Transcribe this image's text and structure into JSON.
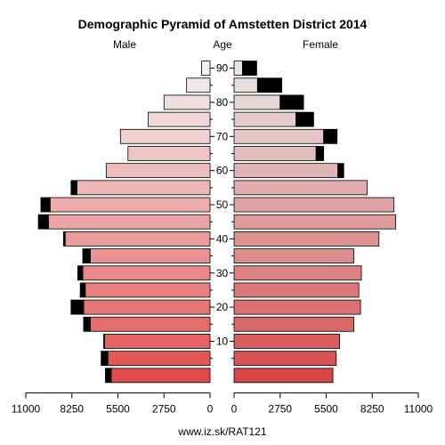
{
  "chart_data": {
    "type": "bar",
    "title": "Demographic Pyramid of Amstetten District 2014",
    "male_label": "Male",
    "female_label": "Female",
    "age_label": "Age",
    "source": "www.iz.sk/RAT121",
    "age_ticks": [
      "10",
      "20",
      "30",
      "40",
      "50",
      "60",
      "70",
      "80",
      "90"
    ],
    "x_ticks_left": [
      "11000",
      "8250",
      "5500",
      "2750",
      "0"
    ],
    "x_ticks_right": [
      "0",
      "2750",
      "5500",
      "8250",
      "11000"
    ],
    "xlim": [
      0,
      11000
    ],
    "age_groups": [
      "0-4",
      "5-9",
      "10-14",
      "15-19",
      "20-24",
      "25-29",
      "30-34",
      "35-39",
      "40-44",
      "45-49",
      "50-54",
      "55-59",
      "60-64",
      "65-69",
      "70-74",
      "75-79",
      "80-84",
      "85-89",
      "90+"
    ],
    "series": [
      {
        "name": "Male",
        "values": [
          6250,
          6500,
          6350,
          7550,
          8300,
          7750,
          7900,
          7600,
          8750,
          10250,
          10100,
          8300,
          6200,
          4900,
          5350,
          3700,
          2750,
          1400,
          500
        ]
      },
      {
        "name": "Female",
        "values": [
          5900,
          6100,
          6300,
          7150,
          7550,
          7450,
          7600,
          7150,
          8650,
          9650,
          9550,
          7950,
          6550,
          5350,
          6150,
          4750,
          4150,
          2850,
          1350
        ]
      }
    ],
    "surplus_note": "black segment marks the excess of the larger sex in each age group",
    "colors": {
      "youngest": "#e24b4b",
      "oldest": "#f3f0f0",
      "surplus": "#000000",
      "axis": "#000000"
    }
  }
}
